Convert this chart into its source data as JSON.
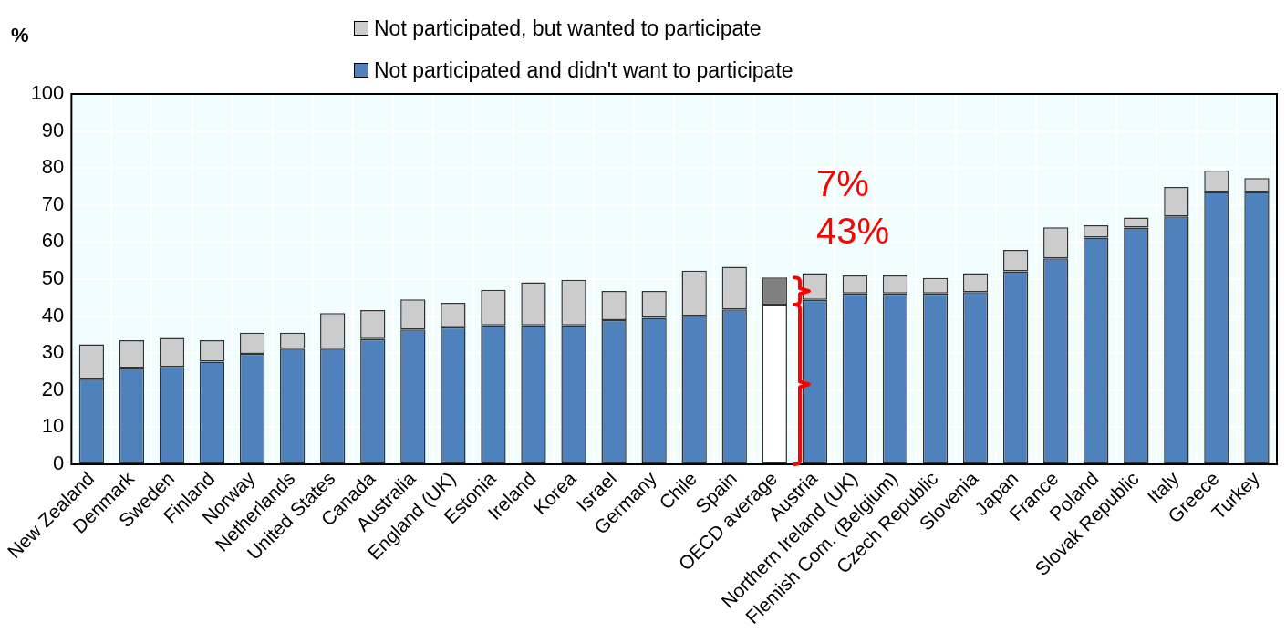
{
  "chart_data": {
    "type": "bar",
    "stacked": true,
    "ylabel": "%",
    "categories": [
      "New Zealand",
      "Denmark",
      "Sweden",
      "Finland",
      "Norway",
      "Netherlands",
      "United States",
      "Canada",
      "Australia",
      "England (UK)",
      "Estonia",
      "Ireland",
      "Korea",
      "Israel",
      "Germany",
      "Chile",
      "Spain",
      "OECD average",
      "Austria",
      "Northern Ireland (UK)",
      "Flemish Com. (Belgium)",
      "Czech Republic",
      "Slovenia",
      "Japan",
      "France",
      "Poland",
      "Slovak Republic",
      "Italy",
      "Greece",
      "Turkey"
    ],
    "series": [
      {
        "name": "Not participated and didn't want to participate",
        "color": "#4f81bd",
        "colors": [
          "#4f81bd",
          "#4f81bd",
          "#4f81bd",
          "#4f81bd",
          "#4f81bd",
          "#4f81bd",
          "#4f81bd",
          "#4f81bd",
          "#4f81bd",
          "#4f81bd",
          "#4f81bd",
          "#4f81bd",
          "#4f81bd",
          "#4f81bd",
          "#4f81bd",
          "#4f81bd",
          "#4f81bd",
          "#ffffff",
          "#4f81bd",
          "#4f81bd",
          "#4f81bd",
          "#4f81bd",
          "#4f81bd",
          "#4f81bd",
          "#4f81bd",
          "#4f81bd",
          "#4f81bd",
          "#4f81bd",
          "#4f81bd",
          "#4f81bd"
        ],
        "values": [
          23.1,
          26.0,
          26.3,
          27.7,
          29.8,
          31.2,
          31.2,
          33.8,
          36.4,
          37.0,
          37.5,
          37.5,
          37.5,
          38.9,
          39.5,
          40.1,
          41.8,
          43.1,
          44.4,
          46.1,
          46.1,
          46.1,
          46.5,
          52.1,
          55.6,
          61.2,
          63.9,
          66.9,
          73.5,
          73.5
        ]
      },
      {
        "name": "Not participated, but wanted to participate",
        "color": "#cccccc",
        "colors": [
          "#cccccc",
          "#cccccc",
          "#cccccc",
          "#cccccc",
          "#cccccc",
          "#cccccc",
          "#cccccc",
          "#cccccc",
          "#cccccc",
          "#cccccc",
          "#cccccc",
          "#cccccc",
          "#cccccc",
          "#cccccc",
          "#cccccc",
          "#cccccc",
          "#cccccc",
          "#808080",
          "#cccccc",
          "#cccccc",
          "#cccccc",
          "#cccccc",
          "#cccccc",
          "#cccccc",
          "#cccccc",
          "#cccccc",
          "#cccccc",
          "#cccccc",
          "#cccccc",
          "#cccccc"
        ],
        "values": [
          9.3,
          7.5,
          7.8,
          5.8,
          5.7,
          4.3,
          9.6,
          7.8,
          8.1,
          6.6,
          9.6,
          11.6,
          12.3,
          7.9,
          7.3,
          12.2,
          11.5,
          7.3,
          7.2,
          4.9,
          4.9,
          4.2,
          5.1,
          5.8,
          8.4,
          3.3,
          2.7,
          8.0,
          5.8,
          3.8
        ]
      }
    ],
    "ylim": [
      0,
      100
    ],
    "yticks": [
      0,
      10,
      20,
      30,
      40,
      50,
      60,
      70,
      80,
      90,
      100
    ],
    "grid": true,
    "legend": "top",
    "annotations": [
      "7%",
      "43%"
    ]
  }
}
